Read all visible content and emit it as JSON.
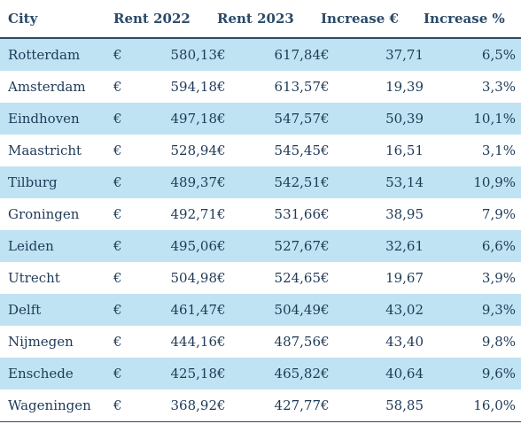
{
  "table": {
    "headers": {
      "city": "City",
      "rent2022": "Rent 2022",
      "rent2023": "Rent 2023",
      "inc_eur": "Increase €",
      "inc_pct": "Increase %"
    },
    "currency_symbol": "€",
    "rows": [
      {
        "city": "Rotterdam",
        "rent2022": "580,13",
        "rent2023": "617,84",
        "inc_eur": "37,71",
        "inc_pct": "6,5%"
      },
      {
        "city": "Amsterdam",
        "rent2022": "594,18",
        "rent2023": "613,57",
        "inc_eur": "19,39",
        "inc_pct": "3,3%"
      },
      {
        "city": "Eindhoven",
        "rent2022": "497,18",
        "rent2023": "547,57",
        "inc_eur": "50,39",
        "inc_pct": "10,1%"
      },
      {
        "city": "Maastricht",
        "rent2022": "528,94",
        "rent2023": "545,45",
        "inc_eur": "16,51",
        "inc_pct": "3,1%"
      },
      {
        "city": "Tilburg",
        "rent2022": "489,37",
        "rent2023": "542,51",
        "inc_eur": "53,14",
        "inc_pct": "10,9%"
      },
      {
        "city": "Groningen",
        "rent2022": "492,71",
        "rent2023": "531,66",
        "inc_eur": "38,95",
        "inc_pct": "7,9%"
      },
      {
        "city": "Leiden",
        "rent2022": "495,06",
        "rent2023": "527,67",
        "inc_eur": "32,61",
        "inc_pct": "6,6%"
      },
      {
        "city": "Utrecht",
        "rent2022": "504,98",
        "rent2023": "524,65",
        "inc_eur": "19,67",
        "inc_pct": "3,9%"
      },
      {
        "city": "Delft",
        "rent2022": "461,47",
        "rent2023": "504,49",
        "inc_eur": "43,02",
        "inc_pct": "9,3%"
      },
      {
        "city": "Nijmegen",
        "rent2022": "444,16",
        "rent2023": "487,56",
        "inc_eur": "43,40",
        "inc_pct": "9,8%"
      },
      {
        "city": "Enschede",
        "rent2022": "425,18",
        "rent2023": "465,82",
        "inc_eur": "40,64",
        "inc_pct": "9,6%"
      },
      {
        "city": "Wageningen",
        "rent2022": "368,92",
        "rent2023": "427,77",
        "inc_eur": "58,85",
        "inc_pct": "16,0%"
      }
    ],
    "colors": {
      "header_text": "#2a4a68",
      "body_text": "#1f3a57",
      "row_shade": "#bfe3f2",
      "rule": "#2a4a68"
    }
  }
}
